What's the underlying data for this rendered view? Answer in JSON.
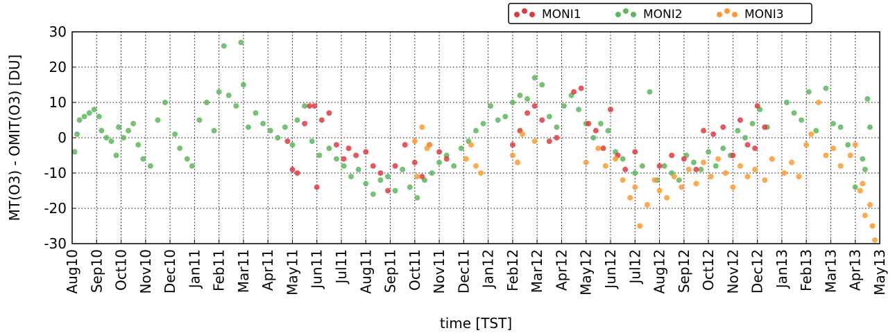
{
  "chart_data": {
    "type": "scatter",
    "xlabel": "time [TST]",
    "ylabel": "MT(O3) - OMIT(O3) [DU]",
    "xlim": [
      0,
      33
    ],
    "xticks": [
      {
        "value": 0,
        "label": "Aug10"
      },
      {
        "value": 1,
        "label": "Sep10"
      },
      {
        "value": 2,
        "label": "Oct10"
      },
      {
        "value": 3,
        "label": "Nov10"
      },
      {
        "value": 4,
        "label": "Dec10"
      },
      {
        "value": 5,
        "label": "Jan11"
      },
      {
        "value": 6,
        "label": "Feb11"
      },
      {
        "value": 7,
        "label": "Mar11"
      },
      {
        "value": 8,
        "label": "Apr11"
      },
      {
        "value": 9,
        "label": "May11"
      },
      {
        "value": 10,
        "label": "Jun11"
      },
      {
        "value": 11,
        "label": "Jul11"
      },
      {
        "value": 12,
        "label": "Aug11"
      },
      {
        "value": 13,
        "label": "Sep11"
      },
      {
        "value": 14,
        "label": "Oct11"
      },
      {
        "value": 15,
        "label": "Nov11"
      },
      {
        "value": 16,
        "label": "Dec11"
      },
      {
        "value": 17,
        "label": "Jan12"
      },
      {
        "value": 18,
        "label": "Feb12"
      },
      {
        "value": 19,
        "label": "Mar12"
      },
      {
        "value": 20,
        "label": "Apr12"
      },
      {
        "value": 21,
        "label": "May12"
      },
      {
        "value": 22,
        "label": "Jun12"
      },
      {
        "value": 23,
        "label": "Jul12"
      },
      {
        "value": 24,
        "label": "Aug12"
      },
      {
        "value": 25,
        "label": "Sep12"
      },
      {
        "value": 26,
        "label": "Oct12"
      },
      {
        "value": 27,
        "label": "Nov12"
      },
      {
        "value": 28,
        "label": "Dec12"
      },
      {
        "value": 29,
        "label": "Jan13"
      },
      {
        "value": 30,
        "label": "Feb13"
      },
      {
        "value": 31,
        "label": "Mar13"
      },
      {
        "value": 32,
        "label": "Apr13"
      },
      {
        "value": 33,
        "label": "May13"
      }
    ],
    "ylim": [
      -30,
      30
    ],
    "yticks": [
      -30,
      -20,
      -10,
      0,
      10,
      20,
      30
    ],
    "grid": true,
    "legend": "top",
    "series": [
      {
        "name": "MONI2",
        "color": "#5cb85c",
        "x": [
          0.1,
          0.2,
          0.3,
          0.5,
          0.7,
          0.9,
          1.1,
          1.2,
          1.4,
          1.6,
          1.8,
          1.9,
          2.1,
          2.3,
          2.5,
          2.7,
          2.9,
          3.2,
          3.5,
          3.8,
          4.2,
          4.4,
          4.7,
          4.9,
          5.2,
          5.5,
          5.8,
          6.0,
          6.2,
          6.4,
          6.7,
          6.9,
          7.0,
          7.2,
          7.5,
          7.8,
          8.1,
          8.4,
          8.7,
          9.0,
          9.2,
          9.5,
          9.8,
          10.1,
          10.5,
          10.8,
          11.1,
          11.4,
          11.7,
          12.0,
          12.3,
          12.6,
          12.9,
          13.2,
          13.5,
          13.8,
          14.1,
          14.4,
          14.7,
          15.0,
          15.3,
          15.6,
          15.9,
          16.2,
          16.5,
          16.8,
          17.1,
          17.4,
          17.7,
          18.0,
          18.3,
          18.6,
          18.9,
          19.2,
          19.5,
          19.8,
          20.1,
          20.4,
          20.7,
          21.0,
          21.3,
          21.6,
          21.9,
          22.2,
          22.5,
          23.0,
          23.3,
          23.6,
          23.9,
          24.2,
          24.5,
          24.8,
          25.1,
          25.4,
          25.7,
          26.0,
          26.3,
          26.6,
          26.9,
          27.2,
          27.5,
          27.8,
          28.1,
          28.4,
          29.2,
          29.5,
          29.8,
          30.1,
          30.4,
          30.8,
          31.1,
          31.4,
          31.7,
          32.0,
          32.3,
          32.5,
          32.6,
          32.4
        ],
        "values": [
          -4,
          1,
          5,
          6,
          7,
          8,
          6,
          2,
          0,
          -1,
          -5,
          3,
          0,
          2,
          4,
          -2,
          -6,
          -8,
          5,
          10,
          1,
          -3,
          -6,
          -8,
          5,
          10,
          2,
          13,
          26,
          12,
          9,
          27,
          15,
          3,
          7,
          4,
          2,
          0,
          3,
          -2,
          5,
          9,
          -1,
          -5,
          -3,
          -6,
          -8,
          -11,
          -9,
          -13,
          -16,
          -12,
          -11,
          -15,
          -9,
          -14,
          -17,
          -12,
          -10,
          -7,
          -5,
          -8,
          -3,
          -1,
          2,
          4,
          9,
          5,
          6,
          10,
          12,
          11,
          17,
          15,
          6,
          3,
          9,
          12,
          8,
          4,
          0,
          4,
          2,
          -4,
          -6,
          -10,
          -8,
          13,
          -12,
          -8,
          -10,
          -12,
          -5,
          -7,
          -9,
          -4,
          -8,
          -3,
          -5,
          2,
          0,
          4,
          8,
          3,
          10,
          7,
          5,
          13,
          2,
          14,
          4,
          3,
          -2,
          -14,
          -6,
          11,
          3,
          -9
        ]
      },
      {
        "name": "MONI1",
        "color": "#e03a3e",
        "x": [
          8.8,
          9.0,
          9.2,
          9.5,
          9.7,
          9.9,
          10.0,
          10.2,
          10.5,
          10.8,
          11.1,
          11.3,
          11.6,
          12.0,
          12.3,
          12.6,
          12.9,
          13.2,
          13.6,
          14.0,
          14.3,
          14.6,
          15.0,
          15.3,
          18.0,
          18.3,
          18.6,
          18.9,
          19.2,
          19.5,
          19.8,
          20.5,
          20.8,
          21.1,
          21.4,
          21.7,
          22.0,
          22.3,
          22.6,
          23.0,
          24.0,
          24.5,
          25.0,
          25.5,
          25.8,
          26.2,
          26.6,
          27.0,
          27.3,
          27.6,
          28.0,
          28.3,
          27.9
        ],
        "values": [
          -1,
          -9,
          -10,
          4,
          9,
          9,
          -14,
          5,
          7,
          -2,
          -6,
          -3,
          -5,
          -4,
          -8,
          -10,
          -15,
          -8,
          -2,
          -7,
          -11,
          -2,
          -4,
          -6,
          -2,
          2,
          7,
          9,
          5,
          -1,
          0,
          13,
          14,
          4,
          2,
          -3,
          8,
          -5,
          -9,
          -4,
          -8,
          -5,
          -6,
          -9,
          2,
          1,
          3,
          -5,
          5,
          -2,
          9,
          3,
          -3
        ]
      },
      {
        "name": "MONI3",
        "color": "#ff9a2e",
        "x": [
          14.0,
          14.1,
          14.3,
          14.5,
          14.6,
          16.1,
          16.3,
          16.5,
          16.7,
          18.0,
          18.2,
          18.4,
          18.9,
          21.0,
          21.5,
          21.8,
          22.2,
          22.5,
          22.8,
          23.0,
          23.2,
          23.5,
          23.8,
          24.0,
          24.3,
          24.6,
          24.9,
          25.2,
          25.5,
          25.8,
          26.1,
          26.4,
          26.7,
          27.0,
          27.3,
          27.6,
          27.9,
          28.3,
          28.6,
          29.1,
          29.4,
          29.7,
          30.0,
          30.2,
          30.5,
          30.8,
          31.1,
          31.4,
          31.8,
          32.0,
          32.2,
          32.4,
          32.6,
          32.7,
          32.8,
          32.3
        ],
        "values": [
          -1,
          -11,
          3,
          -3,
          -2,
          -6,
          -2,
          -8,
          -10,
          -5,
          -7,
          1,
          -1,
          -7,
          -3,
          -8,
          -6,
          -12,
          -17,
          -14,
          -25,
          -19,
          -12,
          -15,
          -17,
          -11,
          -14,
          -9,
          -13,
          -7,
          -11,
          -6,
          -10,
          -14,
          -8,
          -11,
          -9,
          -12,
          -6,
          -10,
          -7,
          -11,
          -2,
          1,
          10,
          -5,
          -3,
          -8,
          -5,
          -2,
          -15,
          -22,
          -19,
          -25,
          -29,
          -13
        ]
      }
    ]
  }
}
